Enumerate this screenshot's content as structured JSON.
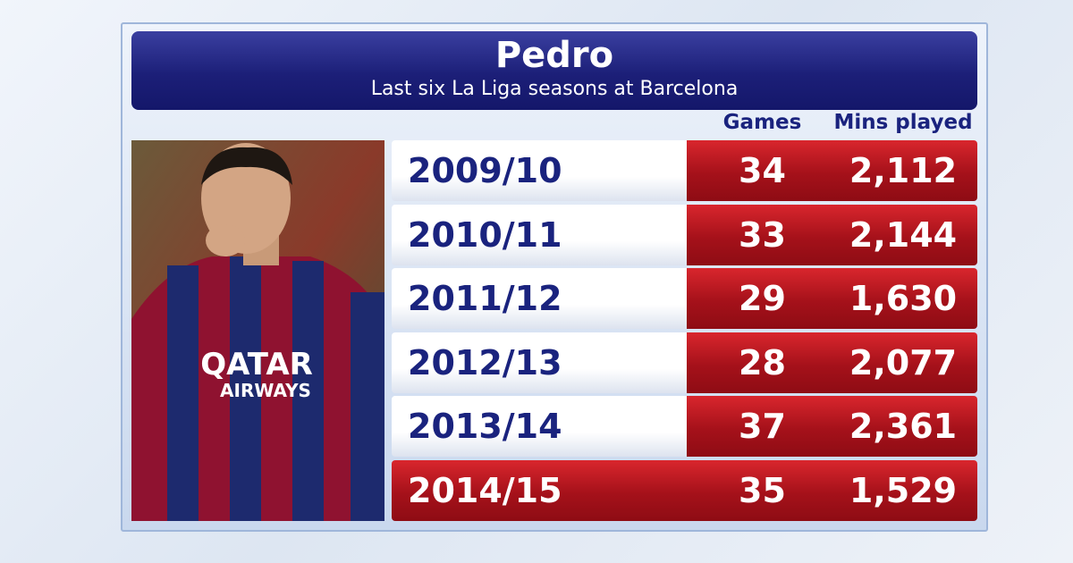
{
  "header": {
    "title": "Pedro",
    "subtitle": "Last six La Liga seasons at Barcelona"
  },
  "table": {
    "columns": [
      "Games",
      "Mins played"
    ],
    "rows": [
      [
        "2009/10",
        34,
        "2,112"
      ],
      [
        "2010/11",
        33,
        "2,144"
      ],
      [
        "2011/12",
        29,
        "1,630"
      ],
      [
        "2012/13",
        28,
        "2,077"
      ],
      [
        "2013/14",
        37,
        "2,361"
      ],
      [
        "2014/15",
        35,
        "1,529"
      ]
    ]
  },
  "photo": {
    "shirt_sponsor": [
      "QATAR",
      "AIRWAYS"
    ]
  }
}
